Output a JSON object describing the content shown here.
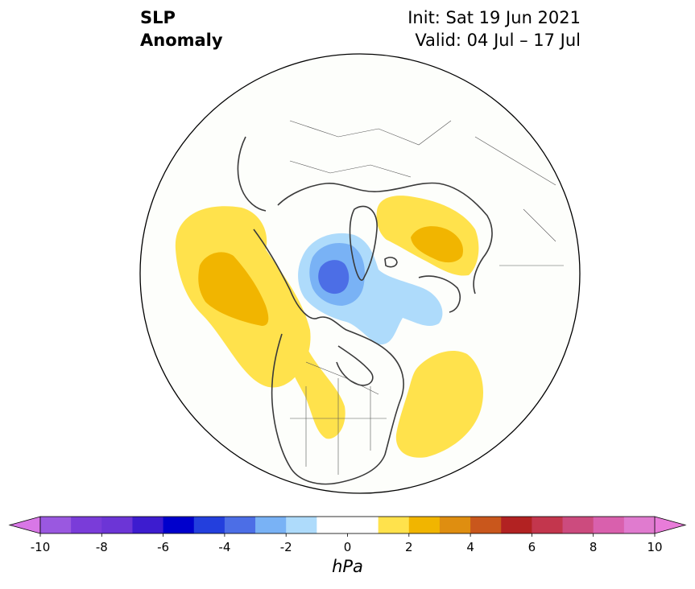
{
  "title": {
    "variable_line1": "SLP",
    "variable_line2": "Anomaly",
    "init_text": "Init: Sat 19 Jun 2021",
    "valid_text": "Valid: 04 Jul – 17 Jul"
  },
  "map": {
    "projection": "north polar stereographic",
    "region": "Northern Hemisphere",
    "land_color": "#fdfefb",
    "coastline_color": "#3a3a3a",
    "anomaly_features": [
      {
        "name": "north-pacific-high",
        "sign": "positive",
        "peak_hpa": 3
      },
      {
        "name": "west-coast-north-america-high",
        "sign": "positive",
        "peak_hpa": 2
      },
      {
        "name": "central-arctic-low",
        "sign": "negative",
        "peak_hpa": -4
      },
      {
        "name": "northwest-atlantic-high",
        "sign": "positive",
        "peak_hpa": 2
      },
      {
        "name": "barents-kara-high",
        "sign": "positive",
        "peak_hpa": 3
      }
    ]
  },
  "colorbar": {
    "unit": "hPa",
    "tick_labels": [
      "-10",
      "-8",
      "-6",
      "-4",
      "-2",
      "0",
      "2",
      "4",
      "6",
      "8",
      "10"
    ],
    "extend": "both",
    "under_color": "#d877e6",
    "over_color": "#e87cd9",
    "bins": [
      {
        "from": -10,
        "to": -9,
        "color": "#9a58e0"
      },
      {
        "from": -9,
        "to": -8,
        "color": "#7a3cd9"
      },
      {
        "from": -8,
        "to": -7,
        "color": "#6c35d6"
      },
      {
        "from": -7,
        "to": -6,
        "color": "#3d1ccf"
      },
      {
        "from": -6,
        "to": -5,
        "color": "#0000cc"
      },
      {
        "from": -5,
        "to": -4,
        "color": "#233fdd"
      },
      {
        "from": -4,
        "to": -3,
        "color": "#4c6ee6"
      },
      {
        "from": -3,
        "to": -2,
        "color": "#79b2f5"
      },
      {
        "from": -2,
        "to": -1,
        "color": "#aedbfb"
      },
      {
        "from": -1,
        "to": 1,
        "color": "#ffffff"
      },
      {
        "from": 1,
        "to": 2,
        "color": "#ffe24c"
      },
      {
        "from": 2,
        "to": 3,
        "color": "#f1b500"
      },
      {
        "from": 3,
        "to": 4,
        "color": "#df8e10"
      },
      {
        "from": 4,
        "to": 5,
        "color": "#c9571c"
      },
      {
        "from": 5,
        "to": 6,
        "color": "#b22222"
      },
      {
        "from": 6,
        "to": 7,
        "color": "#c3364d"
      },
      {
        "from": 7,
        "to": 8,
        "color": "#cc4b7e"
      },
      {
        "from": 8,
        "to": 9,
        "color": "#d960ad"
      },
      {
        "from": 9,
        "to": 10,
        "color": "#e07bcf"
      }
    ]
  }
}
